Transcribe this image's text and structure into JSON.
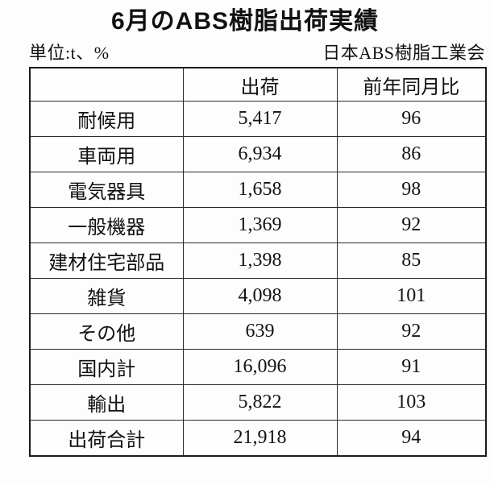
{
  "page": {
    "title": "6月のABS樹脂出荷実績",
    "unit_note": "単位:t、%",
    "organization": "日本ABS樹脂工業会"
  },
  "chart_data": {
    "type": "table",
    "title": "6月のABS樹脂出荷実績",
    "unit": "t、%",
    "source": "日本ABS樹脂工業会",
    "columns": [
      "",
      "出荷",
      "前年同月比"
    ],
    "rows": [
      [
        "耐候用",
        "5,417",
        "96"
      ],
      [
        "車両用",
        "6,934",
        "86"
      ],
      [
        "電気器具",
        "1,658",
        "98"
      ],
      [
        "一般機器",
        "1,369",
        "92"
      ],
      [
        "建材住宅部品",
        "1,398",
        "85"
      ],
      [
        "雑貨",
        "4,098",
        "101"
      ],
      [
        "その他",
        "639",
        "92"
      ],
      [
        "国内計",
        "16,096",
        "91"
      ],
      [
        "輸出",
        "5,822",
        "103"
      ],
      [
        "出荷合計",
        "21,918",
        "94"
      ]
    ]
  }
}
